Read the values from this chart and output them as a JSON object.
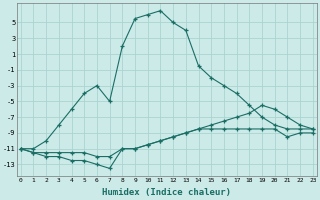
{
  "xlabel": "Humidex (Indice chaleur)",
  "bg_color": "#cceae8",
  "grid_color": "#aad4d0",
  "line_color": "#1a6e65",
  "marker": "+",
  "series": [
    {
      "x": [
        0,
        1,
        2,
        3,
        4,
        5,
        6,
        7,
        8,
        9,
        10,
        11,
        12,
        13,
        14,
        15,
        16,
        17,
        18,
        19,
        20,
        21,
        22,
        23
      ],
      "y": [
        -11,
        -11,
        -10,
        -8,
        -6,
        -4,
        -3,
        -5,
        2,
        5.5,
        6,
        6.5,
        5,
        4,
        -0.5,
        -2,
        -3,
        -4,
        -5.5,
        -7,
        -8,
        -8.5,
        -8.5,
        -8.5
      ]
    },
    {
      "x": [
        0,
        1,
        2,
        3,
        4,
        5,
        6,
        7,
        8,
        9,
        10,
        11,
        12,
        13,
        14,
        15,
        16,
        17,
        18,
        19,
        20,
        21,
        22,
        23
      ],
      "y": [
        -11,
        -11.5,
        -11.5,
        -11.5,
        -11.5,
        -11.5,
        -12,
        -12,
        -11,
        -11,
        -10.5,
        -10,
        -9.5,
        -9,
        -8.5,
        -8,
        -7.5,
        -7,
        -6.5,
        -5.5,
        -6,
        -7,
        -8,
        -8.5
      ]
    },
    {
      "x": [
        0,
        1,
        2,
        3,
        4,
        5,
        6,
        7,
        8,
        9,
        10,
        11,
        12,
        13,
        14,
        15,
        16,
        17,
        18,
        19,
        20,
        21,
        22,
        23
      ],
      "y": [
        -11,
        -11.5,
        -12,
        -12,
        -12.5,
        -12.5,
        -13,
        -13.5,
        -11,
        -11,
        -10.5,
        -10,
        -9.5,
        -9,
        -8.5,
        -8.5,
        -8.5,
        -8.5,
        -8.5,
        -8.5,
        -8.5,
        -9.5,
        -9,
        -9
      ]
    }
  ],
  "yticks": [
    5,
    3,
    1,
    -1,
    -3,
    -5,
    -7,
    -9,
    -11,
    -13
  ],
  "xticks": [
    0,
    1,
    2,
    3,
    4,
    5,
    6,
    7,
    8,
    9,
    10,
    11,
    12,
    13,
    14,
    15,
    16,
    17,
    18,
    19,
    20,
    21,
    22,
    23
  ],
  "ylim": [
    -14.5,
    7.5
  ],
  "xlim": [
    -0.3,
    23.3
  ]
}
